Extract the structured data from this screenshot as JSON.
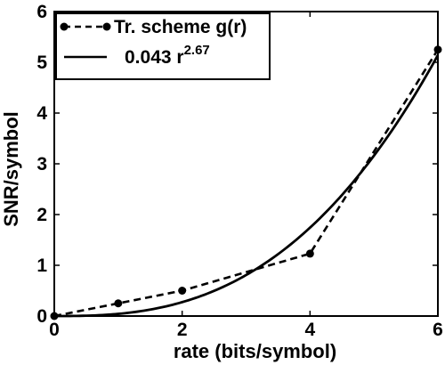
{
  "chart_data": {
    "type": "line",
    "xlabel": "rate (bits/symbol)",
    "ylabel": "SNR/symbol",
    "xlim": [
      0,
      6
    ],
    "ylim": [
      0,
      6
    ],
    "xticks": [
      0,
      2,
      4,
      6
    ],
    "yticks": [
      0,
      1,
      2,
      3,
      4,
      5,
      6
    ],
    "legend_position": "top-left",
    "series": [
      {
        "name": "Tr. scheme g(r)",
        "style": "dashed-with-markers",
        "color": "#000000",
        "x": [
          0,
          1,
          2,
          4,
          6
        ],
        "y": [
          0,
          0.25,
          0.5,
          1.23,
          5.25
        ]
      },
      {
        "name_prefix": "0.043 r",
        "name_superscript": "2.67",
        "style": "solid",
        "color": "#000000",
        "coefficient": 0.043,
        "exponent": 2.67
      }
    ]
  }
}
